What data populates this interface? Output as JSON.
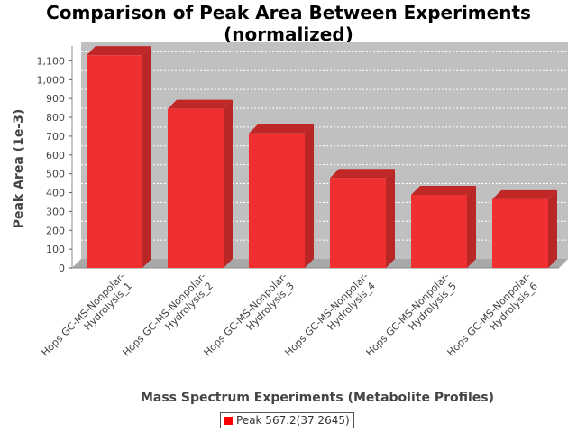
{
  "chart_data": {
    "type": "bar",
    "title_line1": "Comparison of Peak Area Between Experiments",
    "title_line2": "(normalized)",
    "xlabel": "Mass Spectrum Experiments (Metabolite Profiles)",
    "ylabel": "Peak Area (1e-3)",
    "categories": [
      [
        "Hops GC-MS-Nonpolar-",
        "Hydrolysis_1"
      ],
      [
        "Hops GC-MS-Nonpolar-",
        "Hydrolysis_2"
      ],
      [
        "Hops GC-MS-Nonpolar-",
        "Hydrolysis_3"
      ],
      [
        "Hops GC-MS-Nonpolar-",
        "Hydrolysis_4"
      ],
      [
        "Hops GC-MS-Nonpolar-",
        "Hydrolysis_5"
      ],
      [
        "Hops GC-MS-Nonpolar-",
        "Hydrolysis_6"
      ]
    ],
    "series": [
      {
        "name": "Peak 567.2(37.2645)",
        "values": [
          1130,
          845,
          715,
          478,
          388,
          365
        ]
      }
    ],
    "ylim": [
      0,
      1150
    ],
    "yticks": [
      0,
      100,
      200,
      300,
      400,
      500,
      600,
      700,
      800,
      900,
      1000,
      1100
    ],
    "ytick_labels": [
      "0",
      "100",
      "200",
      "300",
      "400",
      "500",
      "600",
      "700",
      "800",
      "900",
      "1,000",
      "1,100"
    ],
    "grid": true,
    "legend_position": "bottom",
    "colors": {
      "bar": "#f03030",
      "bar_top": "#c02828",
      "bar_side": "#b82626",
      "plot_bg": "#c0c0c0",
      "legend_swatch": "#ff0000"
    }
  }
}
